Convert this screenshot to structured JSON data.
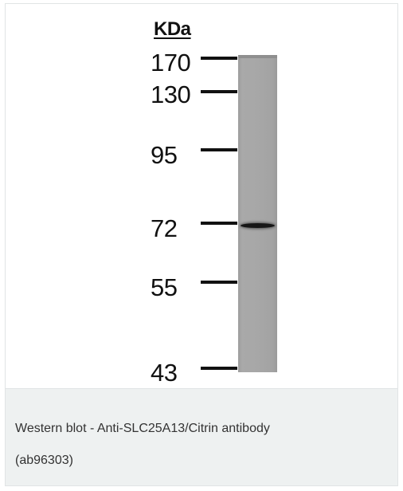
{
  "blot": {
    "unit": "KDa",
    "markers": [
      {
        "label": "170"
      },
      {
        "label": "130"
      },
      {
        "label": "95"
      },
      {
        "label": "72"
      },
      {
        "label": "55"
      },
      {
        "label": "43"
      }
    ],
    "band": {
      "marker": "72"
    }
  },
  "caption": {
    "line1": "Western blot - Anti-SLC25A13/Citrin antibody",
    "line2": "(ab96303)"
  },
  "colors": {
    "lane": "#a7a7a7",
    "band": "#161616",
    "caption_background": "#eef1f1"
  }
}
